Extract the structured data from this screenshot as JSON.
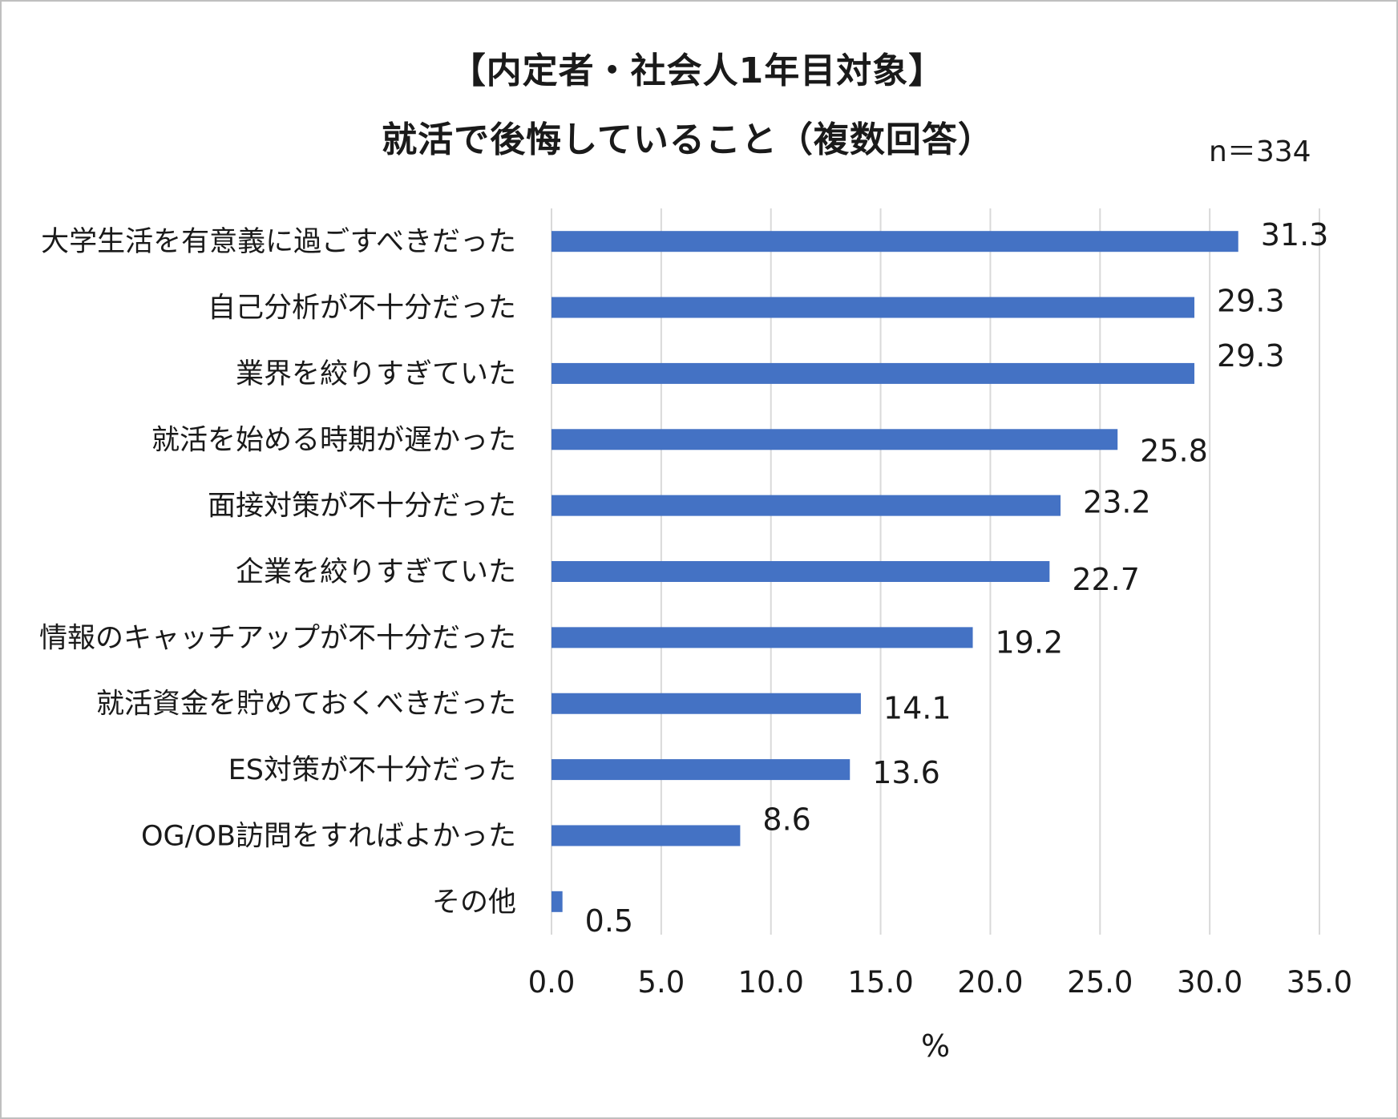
{
  "chart_data": {
    "type": "bar",
    "orientation": "horizontal",
    "title": "【内定者・社会人1年目対象】",
    "subtitle": "就活で後悔していること（複数回答）",
    "sample_size": "n＝334",
    "xlabel": "%",
    "ylabel": "",
    "xlim": [
      0,
      35
    ],
    "x_ticks": [
      "0.0",
      "5.0",
      "10.0",
      "15.0",
      "20.0",
      "25.0",
      "30.0",
      "35.0"
    ],
    "grid": "vertical",
    "legend": "none",
    "bar_color": "#4472c4",
    "categories": [
      "大学生活を有意義に過ごすべきだった",
      "自己分析が不十分だった",
      "業界を絞りすぎていた",
      "就活を始める時期が遅かった",
      "面接対策が不十分だった",
      "企業を絞りすぎていた",
      "情報のキャッチアップが不十分だった",
      "就活資金を貯めておくべきだった",
      "ES対策が不十分だった",
      "OG/OB訪問をすればよかった",
      "その他"
    ],
    "values": [
      31.3,
      29.3,
      29.3,
      25.8,
      23.2,
      22.7,
      19.2,
      14.1,
      13.6,
      8.6,
      0.5
    ],
    "value_labels": [
      "31.3",
      "29.3",
      "29.3",
      "25.8",
      "23.2",
      "22.7",
      "19.2",
      "14.1",
      "13.6",
      "8.6",
      "0.5"
    ]
  }
}
